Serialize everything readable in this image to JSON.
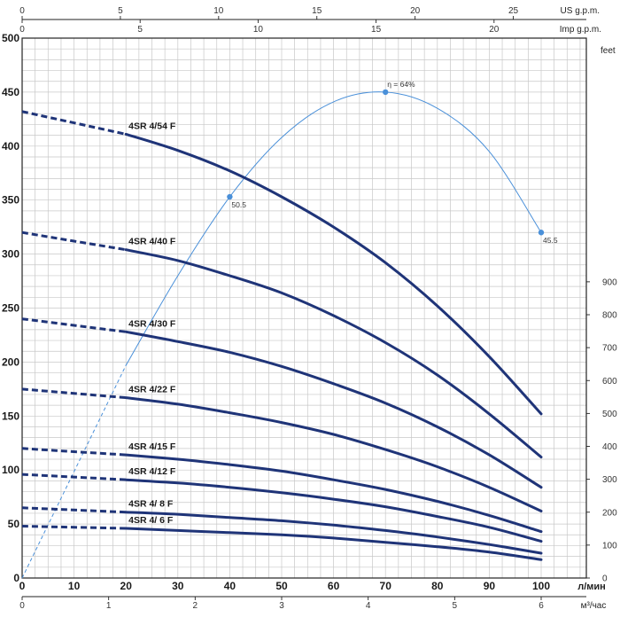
{
  "chart_data": {
    "type": "line",
    "title": "",
    "xlabel": "л/мин",
    "ylabel": "",
    "xlim": [
      0,
      100
    ],
    "ylim": [
      0,
      500
    ],
    "grid": true,
    "left_ticks": [
      0,
      50,
      100,
      150,
      200,
      250,
      300,
      350,
      400,
      450,
      500
    ],
    "bottom_ticks": [
      0,
      10,
      20,
      30,
      40,
      50,
      60,
      70,
      80,
      90,
      100
    ],
    "right_axis": {
      "unit": "feet",
      "ticks": [
        0,
        100,
        200,
        300,
        400,
        500,
        600,
        700,
        800,
        900
      ]
    },
    "top_axis_us": {
      "unit": "US g.p.m.",
      "ticks": [
        0,
        5,
        10,
        15,
        20,
        25
      ]
    },
    "top_axis_imp": {
      "unit": "Imp g.p.m.",
      "ticks": [
        0,
        5,
        10,
        15,
        20
      ]
    },
    "bottom_axis_m3h": {
      "unit": "м³/час",
      "ticks": [
        0,
        1,
        2,
        3,
        4,
        5,
        6
      ]
    },
    "series": [
      {
        "name": "4SR 4/54 F",
        "dashed_until": 20,
        "x": [
          0,
          20,
          30,
          40,
          50,
          60,
          70,
          80,
          90,
          100
        ],
        "y": [
          432,
          411,
          396,
          377,
          353,
          325,
          292,
          252,
          205,
          152
        ]
      },
      {
        "name": "4SR 4/40 F",
        "dashed_until": 20,
        "x": [
          0,
          20,
          30,
          40,
          50,
          60,
          70,
          80,
          90,
          100
        ],
        "y": [
          320,
          304,
          294,
          280,
          264,
          243,
          218,
          188,
          152,
          112
        ]
      },
      {
        "name": "4SR 4/30 F",
        "dashed_until": 20,
        "x": [
          0,
          20,
          30,
          40,
          50,
          60,
          70,
          80,
          90,
          100
        ],
        "y": [
          240,
          228,
          219,
          209,
          196,
          180,
          162,
          140,
          114,
          84
        ]
      },
      {
        "name": "4SR 4/22 F",
        "dashed_until": 20,
        "x": [
          0,
          20,
          30,
          40,
          50,
          60,
          70,
          80,
          90,
          100
        ],
        "y": [
          175,
          167,
          161,
          153,
          144,
          133,
          119,
          103,
          84,
          62
        ]
      },
      {
        "name": "4SR 4/15 F",
        "dashed_until": 20,
        "x": [
          0,
          20,
          30,
          40,
          50,
          60,
          70,
          80,
          90,
          100
        ],
        "y": [
          120,
          114,
          110,
          105,
          99,
          91,
          82,
          71,
          58,
          43
        ]
      },
      {
        "name": "4SR 4/12 F",
        "dashed_until": 20,
        "x": [
          0,
          20,
          30,
          40,
          50,
          60,
          70,
          80,
          90,
          100
        ],
        "y": [
          96,
          91,
          88,
          84,
          79,
          73,
          66,
          57,
          47,
          34
        ]
      },
      {
        "name": "4SR 4/ 8 F",
        "dashed_until": 20,
        "x": [
          0,
          20,
          30,
          40,
          50,
          60,
          70,
          80,
          90,
          100
        ],
        "y": [
          65,
          61,
          59,
          56,
          53,
          49,
          44,
          38,
          31,
          23
        ]
      },
      {
        "name": "4SR 4/ 6 F",
        "dashed_until": 20,
        "x": [
          0,
          20,
          30,
          40,
          50,
          60,
          70,
          80,
          90,
          100
        ],
        "y": [
          48,
          46,
          44,
          42,
          40,
          37,
          33,
          29,
          24,
          17
        ]
      }
    ],
    "efficiency_curve": {
      "dashed_until": 20,
      "x": [
        0,
        20,
        30,
        40,
        50,
        60,
        70,
        80,
        90,
        100
      ],
      "y": [
        0,
        197,
        280,
        353,
        408,
        441,
        450,
        435,
        395,
        320
      ],
      "markers": [
        {
          "x": 40,
          "y": 353,
          "label": "50.5"
        },
        {
          "x": 70,
          "y": 450,
          "label": "η = 64%"
        },
        {
          "x": 100,
          "y": 320,
          "label": "45.5"
        }
      ]
    }
  },
  "colors": {
    "curve": "#1f3478",
    "efficiency": "#4a90d9",
    "grid": "#c8c8c8",
    "axis": "#222222"
  }
}
